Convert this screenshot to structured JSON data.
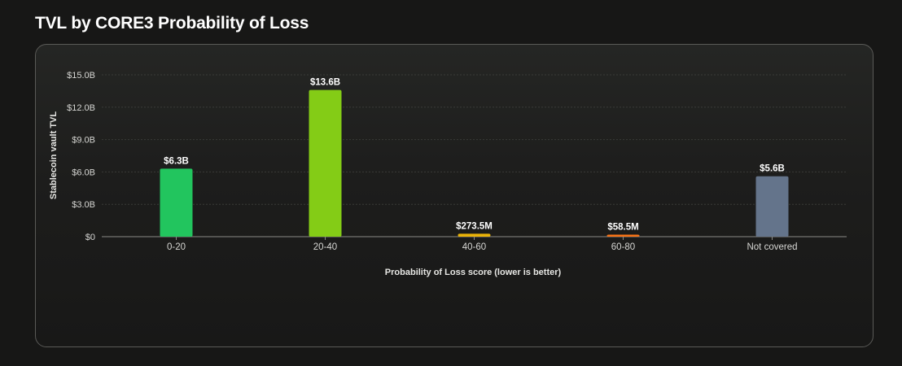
{
  "title": "TVL by CORE3 Probability of Loss",
  "chart_data": {
    "type": "bar",
    "categories": [
      "0-20",
      "20-40",
      "40-60",
      "60-80",
      "Not covered"
    ],
    "values": [
      6.3,
      13.6,
      0.2735,
      0.0585,
      5.6
    ],
    "value_labels": [
      "$6.3B",
      "$13.6B",
      "$273.5M",
      "$58.5M",
      "$5.6B"
    ],
    "colors": [
      "#22c55e",
      "#84cc16",
      "#eab308",
      "#f97316",
      "#64748b"
    ],
    "xlabel": "Probability of Loss score (lower is better)",
    "ylabel": "Stablecoin vault TVL",
    "ylim": [
      0,
      15
    ],
    "yticks": [
      0,
      3,
      6,
      9,
      12,
      15
    ],
    "ytick_labels": [
      "$0",
      "$3.0B",
      "$6.0B",
      "$9.0B",
      "$12.0B",
      "$15.0B"
    ],
    "grid": true
  }
}
